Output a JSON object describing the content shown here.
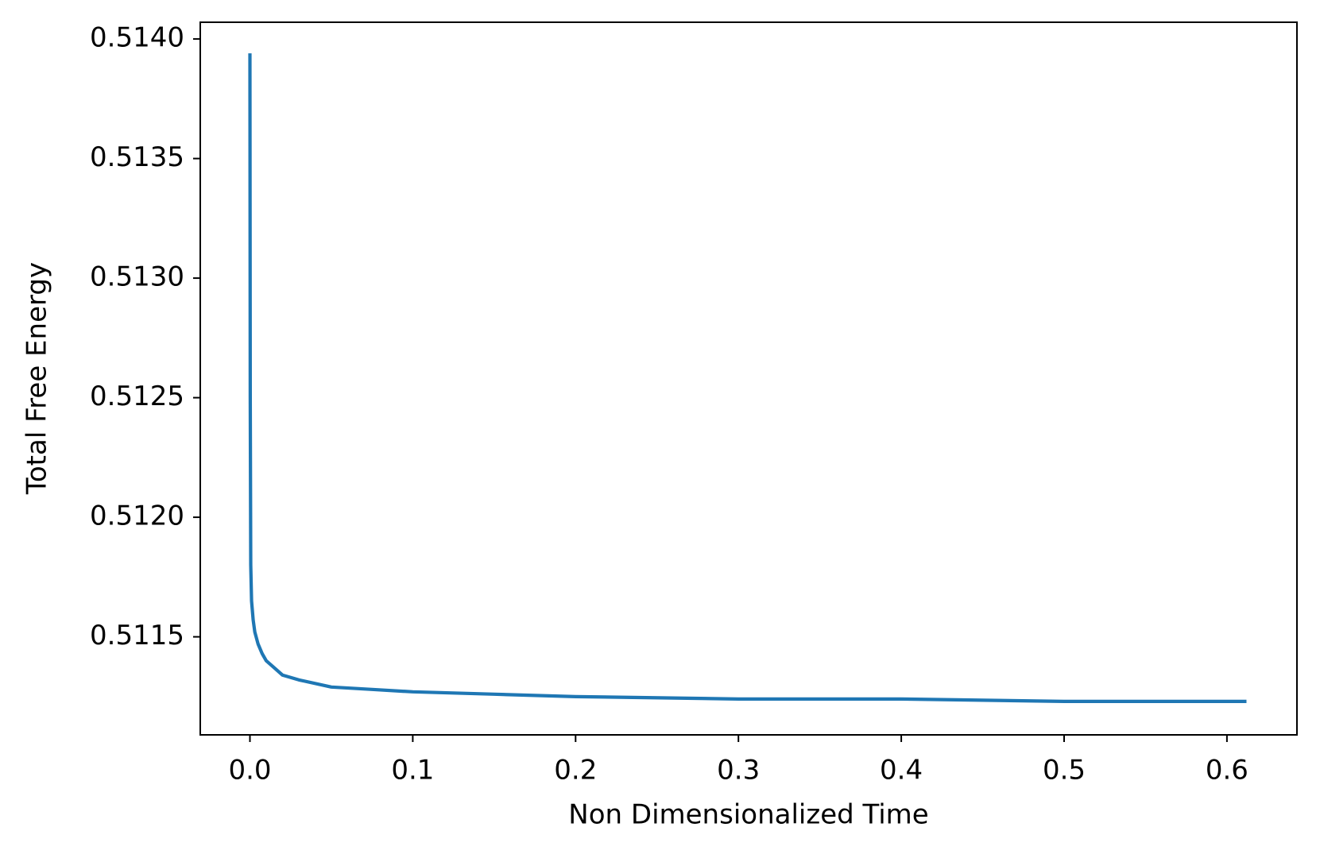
{
  "chart_data": {
    "type": "line",
    "xlabel": "Non Dimensionalized Time",
    "ylabel": "Total Free Energy",
    "x": [
      0,
      0.0002,
      0.0005,
      0.001,
      0.002,
      0.003,
      0.005,
      0.0075,
      0.01,
      0.015,
      0.02,
      0.03,
      0.05,
      0.075,
      0.1,
      0.15,
      0.2,
      0.3,
      0.4,
      0.5,
      0.612
    ],
    "values": [
      0.51394,
      0.5125,
      0.5118,
      0.51165,
      0.51157,
      0.51152,
      0.51147,
      0.51143,
      0.5114,
      0.51137,
      0.51134,
      0.51132,
      0.51129,
      0.51128,
      0.51127,
      0.51126,
      0.51125,
      0.51124,
      0.51124,
      0.51123,
      0.51123
    ],
    "color": "#1f77b4",
    "xlim": [
      -0.0305,
      0.643
    ],
    "ylim": [
      0.51109,
      0.51407
    ],
    "xticks": [
      {
        "value": 0,
        "label": "0.0"
      },
      0.1,
      0.2,
      0.3,
      0.4,
      0.5,
      0.6
    ],
    "yticks": [
      0.5115,
      {
        "value": 0.512,
        "label": "0.5120"
      },
      0.5125,
      {
        "value": 0.513,
        "label": "0.5130"
      },
      0.5135,
      {
        "value": 0.514,
        "label": "0.5140"
      }
    ],
    "grid": false
  }
}
